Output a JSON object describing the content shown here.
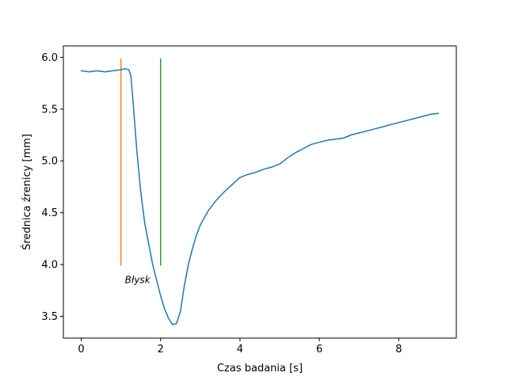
{
  "chart_data": {
    "type": "line",
    "title": "",
    "xlabel": "Czas badania [s]",
    "ylabel": "Średnica źrenicy [mm]",
    "xlim": [
      -0.45,
      9.45
    ],
    "ylim": [
      3.29,
      6.11
    ],
    "grid": false,
    "xticks": [
      0,
      2,
      4,
      6,
      8
    ],
    "xtick_labels": [
      "0",
      "2",
      "4",
      "6",
      "8"
    ],
    "yticks": [
      3.5,
      4.0,
      4.5,
      5.0,
      5.5,
      6.0
    ],
    "ytick_labels": [
      "3.5",
      "4.0",
      "4.5",
      "5.0",
      "5.5",
      "6.0"
    ],
    "series": [
      {
        "color": "#1f77b4",
        "x": [
          0.0,
          0.2,
          0.4,
          0.6,
          0.8,
          1.0,
          1.1,
          1.2,
          1.25,
          1.3,
          1.4,
          1.5,
          1.6,
          1.7,
          1.8,
          1.9,
          2.0,
          2.1,
          2.2,
          2.3,
          2.4,
          2.5,
          2.6,
          2.7,
          2.8,
          2.9,
          3.0,
          3.2,
          3.4,
          3.6,
          3.8,
          4.0,
          4.2,
          4.4,
          4.6,
          4.8,
          5.0,
          5.2,
          5.4,
          5.6,
          5.8,
          6.0,
          6.2,
          6.4,
          6.6,
          6.8,
          7.0,
          7.2,
          7.4,
          7.6,
          7.8,
          8.0,
          8.2,
          8.4,
          8.6,
          8.8,
          9.0
        ],
        "y": [
          5.87,
          5.86,
          5.87,
          5.86,
          5.87,
          5.88,
          5.89,
          5.88,
          5.82,
          5.6,
          5.1,
          4.7,
          4.4,
          4.2,
          4.0,
          3.85,
          3.7,
          3.57,
          3.48,
          3.42,
          3.43,
          3.55,
          3.8,
          4.0,
          4.15,
          4.28,
          4.38,
          4.52,
          4.62,
          4.7,
          4.77,
          4.84,
          4.87,
          4.89,
          4.92,
          4.94,
          4.97,
          5.03,
          5.08,
          5.12,
          5.16,
          5.18,
          5.2,
          5.21,
          5.22,
          5.25,
          5.27,
          5.29,
          5.31,
          5.33,
          5.35,
          5.37,
          5.39,
          5.41,
          5.43,
          5.45,
          5.46
        ]
      }
    ],
    "vertical_markers": [
      {
        "x": 1.0,
        "y_from": 3.99,
        "y_to": 5.99,
        "color": "#ff7f0e"
      },
      {
        "x": 2.0,
        "y_from": 3.99,
        "y_to": 5.99,
        "color": "#2ca02c"
      }
    ],
    "annotations": [
      {
        "text": "Błysk",
        "x": 1.1,
        "y": 3.82
      }
    ]
  }
}
